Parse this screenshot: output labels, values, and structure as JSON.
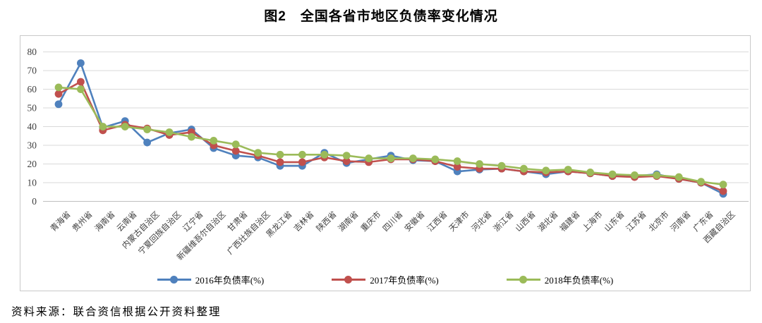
{
  "title": "图2　全国各省市地区负债率变化情况",
  "source": "资料来源：联合资信根据公开资料整理",
  "chart_data": {
    "type": "line",
    "title": "图2　全国各省市地区负债率变化情况",
    "xlabel": "",
    "ylabel": "",
    "ylim": [
      0,
      80
    ],
    "yticks": [
      0,
      10,
      20,
      30,
      40,
      50,
      60,
      70,
      80
    ],
    "grid": true,
    "legend_position": "bottom",
    "categories": [
      "青海省",
      "贵州省",
      "海南省",
      "云南省",
      "内蒙古自治区",
      "宁夏回族自治区",
      "辽宁省",
      "新疆维吾尔自治区",
      "甘肃省",
      "广西壮族自治区",
      "黑龙江省",
      "吉林省",
      "陕西省",
      "湖南省",
      "重庆市",
      "四川省",
      "安徽省",
      "江西省",
      "天津市",
      "河北省",
      "浙江省",
      "山西省",
      "湖北省",
      "福建省",
      "上海市",
      "山东省",
      "江苏省",
      "北京市",
      "河南省",
      "广东省",
      "西藏自治区"
    ],
    "series": [
      {
        "name": "2016年负债率(%)",
        "color": "#4f81bd",
        "values": [
          52,
          74,
          39.5,
          43,
          31.5,
          36.5,
          38.5,
          28.5,
          24.5,
          23.5,
          19,
          19,
          26,
          20.5,
          22.5,
          24.5,
          22,
          21.5,
          16,
          17,
          17.5,
          16,
          14.5,
          16,
          15,
          13.5,
          13.5,
          14.5,
          12,
          10,
          4
        ]
      },
      {
        "name": "2017年负债率(%)",
        "color": "#c0504d",
        "values": [
          57.5,
          64,
          38,
          41,
          39,
          35.5,
          37,
          30,
          27,
          24.5,
          21,
          21,
          23.5,
          21.5,
          21,
          22.5,
          22.5,
          21.5,
          18.5,
          17.5,
          17.5,
          16,
          15.5,
          16,
          15,
          13.5,
          13,
          13.5,
          12,
          10,
          5.5
        ]
      },
      {
        "name": "2018年负债率(%)",
        "color": "#9bbb59",
        "values": [
          61,
          60,
          40,
          40,
          38.5,
          37,
          34.5,
          32.5,
          30.5,
          26,
          25,
          25,
          25,
          24.5,
          23,
          23,
          23,
          22.5,
          21.5,
          20,
          19,
          17.5,
          16.5,
          17,
          15.5,
          14.5,
          14,
          14,
          13,
          10.5,
          9
        ]
      }
    ],
    "gridline_color": "#d9d9d9",
    "axis_line_color": "#bfbfbf",
    "tick_label_color": "#3f3f3f"
  }
}
